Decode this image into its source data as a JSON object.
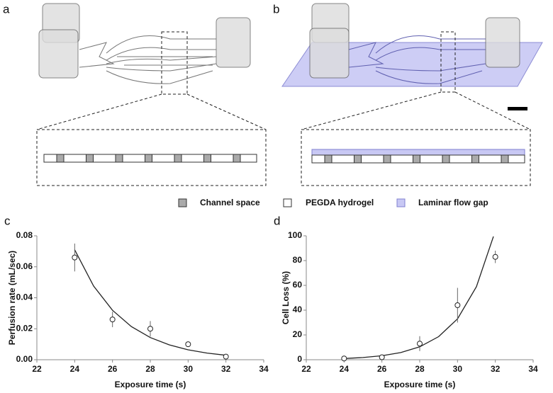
{
  "figure": {
    "panel_labels": [
      "a",
      "b"
    ]
  },
  "legend": [
    "Channel space",
    "PEGDA hydrogel",
    "Laminar flow gap"
  ],
  "chart_data": [
    {
      "type": "scatter",
      "label": "c",
      "xlabel": "Exposure time (s)",
      "ylabel": "Perfusion rate (mL/sec)",
      "x": [
        24,
        26,
        28,
        30,
        32
      ],
      "values": [
        0.066,
        0.026,
        0.02,
        0.01,
        0.002
      ],
      "errors": [
        0.009,
        0.005,
        0.005,
        0.001,
        0.0005
      ],
      "fit": {
        "x": [
          24,
          25,
          26,
          27,
          28,
          29,
          30,
          31,
          32
        ],
        "values": [
          0.071,
          0.0476,
          0.0319,
          0.0214,
          0.0143,
          0.0096,
          0.0064,
          0.0043,
          0.0029
        ]
      },
      "xlim": [
        22,
        34
      ],
      "xticks": [
        22,
        24,
        26,
        28,
        30,
        32,
        34
      ],
      "ylim": [
        0,
        0.08
      ],
      "yticks": [
        {
          "value": 0,
          "label": "0.00"
        },
        0.02,
        0.04,
        0.06,
        0.08
      ]
    },
    {
      "type": "scatter",
      "label": "d",
      "xlabel": "Exposure time (s)",
      "ylabel": "Cell Loss (%)",
      "x": [
        24,
        26,
        28,
        30,
        32
      ],
      "values": [
        1,
        2,
        13,
        44,
        83
      ],
      "errors": [
        0.5,
        0.8,
        6,
        14,
        5
      ],
      "fit": {
        "x": [
          24,
          25,
          26,
          27,
          28,
          29,
          30,
          31,
          31.9
        ],
        "values": [
          1.0,
          1.8,
          3.2,
          5.8,
          10.4,
          18.6,
          33.0,
          59,
          99.5
        ]
      },
      "xlim": [
        22,
        34
      ],
      "xticks": [
        22,
        24,
        26,
        28,
        30,
        32,
        34
      ],
      "ylim": [
        0,
        100
      ],
      "yticks": [
        0,
        20,
        40,
        60,
        80,
        100
      ]
    }
  ]
}
